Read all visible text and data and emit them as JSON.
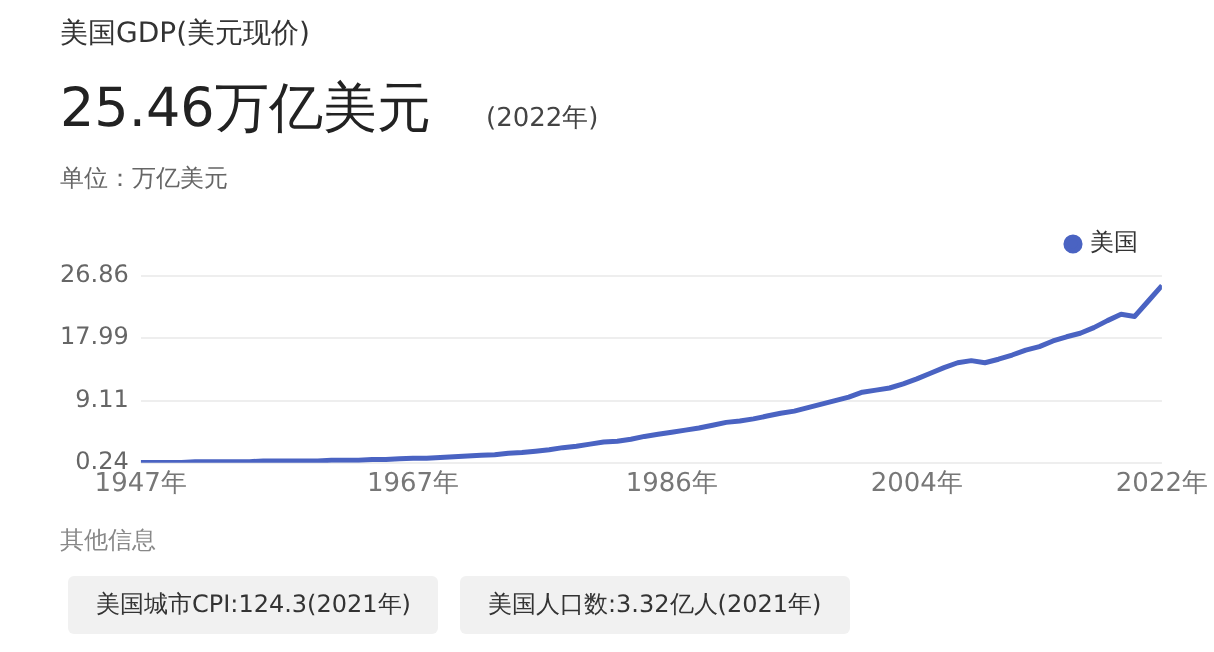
{
  "chart_data": {
    "type": "line",
    "title": "美国GDP(美元现价)",
    "annotations": [
      "25.46万亿美元",
      "(2022年)",
      "单位：万亿美元",
      "其他信息",
      "美国城市CPI:124.3(2021年)",
      "美国人口数:3.32亿人(2021年)"
    ],
    "x": [
      1947,
      1948,
      1949,
      1950,
      1951,
      1952,
      1953,
      1954,
      1955,
      1956,
      1957,
      1958,
      1959,
      1960,
      1961,
      1962,
      1963,
      1964,
      1965,
      1966,
      1967,
      1968,
      1969,
      1970,
      1971,
      1972,
      1973,
      1974,
      1975,
      1976,
      1977,
      1978,
      1979,
      1980,
      1981,
      1982,
      1983,
      1984,
      1985,
      1986,
      1987,
      1988,
      1989,
      1990,
      1991,
      1992,
      1993,
      1994,
      1995,
      1996,
      1997,
      1998,
      1999,
      2000,
      2001,
      2002,
      2003,
      2004,
      2005,
      2006,
      2007,
      2008,
      2009,
      2010,
      2011,
      2012,
      2013,
      2014,
      2015,
      2016,
      2017,
      2018,
      2019,
      2020,
      2021,
      2022
    ],
    "series": [
      {
        "name": "美国",
        "color": "#4a63c2",
        "values": [
          0.3,
          0.3,
          0.3,
          0.3,
          0.4,
          0.4,
          0.4,
          0.4,
          0.4,
          0.5,
          0.5,
          0.5,
          0.5,
          0.5,
          0.6,
          0.6,
          0.6,
          0.7,
          0.7,
          0.8,
          0.9,
          0.9,
          1,
          1.1,
          1.2,
          1.3,
          1.4,
          1.6,
          1.7,
          1.9,
          2.1,
          2.4,
          2.6,
          2.9,
          3.2,
          3.3,
          3.6,
          4,
          4.3,
          4.6,
          4.9,
          5.2,
          5.6,
          6,
          6.2,
          6.5,
          6.9,
          7.3,
          7.6,
          8.1,
          8.6,
          9.1,
          9.6,
          10.3,
          10.6,
          10.9,
          11.5,
          12.2,
          13,
          13.8,
          14.5,
          14.8,
          14.5,
          15,
          15.6,
          16.3,
          16.8,
          17.6,
          18.2,
          18.7,
          19.5,
          20.5,
          21.4,
          21.1,
          23.3,
          25.5
        ]
      }
    ],
    "xlim": [
      1947,
      2022
    ],
    "xticks": [
      {
        "value": 1947,
        "label": "1947年"
      },
      {
        "value": 1967,
        "label": "1967年"
      },
      {
        "value": 1986,
        "label": "1986年"
      },
      {
        "value": 2004,
        "label": "2004年"
      },
      {
        "value": 2022,
        "label": "2022年"
      }
    ],
    "ylim": [
      0.24,
      26.86
    ],
    "yticks": [
      0.24,
      9.11,
      17.99,
      26.86
    ],
    "grid": "y",
    "legend": "top right",
    "marker": "none",
    "line_style": "solid"
  }
}
